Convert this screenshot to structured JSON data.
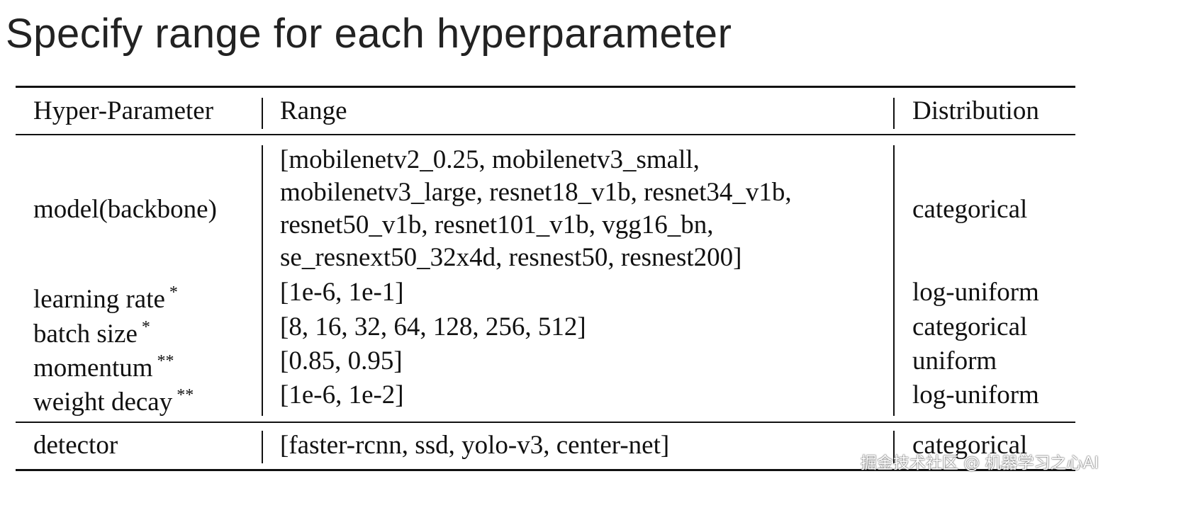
{
  "title": "Specify range for each hyperparameter",
  "table": {
    "headers": [
      "Hyper-Parameter",
      "Range",
      "Distribution"
    ],
    "model": {
      "name": "model(backbone)",
      "range_lines": [
        "[mobilenetv2_0.25, mobilenetv3_small,",
        "mobilenetv3_large, resnet18_v1b, resnet34_v1b,",
        "resnet50_v1b, resnet101_v1b, vgg16_bn,",
        "se_resnext50_32x4d, resnest50, resnest200]"
      ],
      "distribution": "categorical"
    },
    "rows": [
      {
        "name": "learning rate",
        "mark": "*",
        "range": "[1e-6, 1e-1]",
        "distribution": "log-uniform"
      },
      {
        "name": "batch size",
        "mark": "*",
        "range": "[8, 16, 32, 64, 128, 256, 512]",
        "distribution": "categorical"
      },
      {
        "name": "momentum",
        "mark": "**",
        "range": "[0.85, 0.95]",
        "distribution": "uniform"
      },
      {
        "name": "weight decay",
        "mark": "**",
        "range": "[1e-6, 1e-2]",
        "distribution": "log-uniform"
      }
    ],
    "detector": {
      "name": "detector",
      "range": "[faster-rcnn, ssd, yolo-v3, center-net]",
      "distribution": "categorical"
    }
  },
  "watermark": "掘金技术社区 @ 机器学习之心AI"
}
